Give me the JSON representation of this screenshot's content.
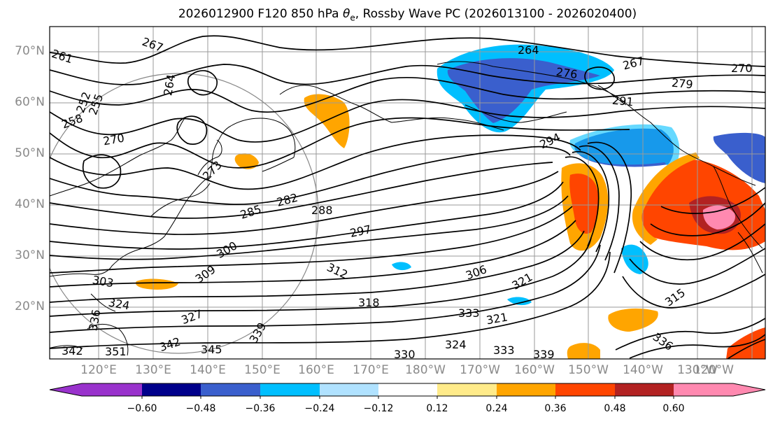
{
  "title": {
    "prefix": "2026012900 F120 850 hPa ",
    "theta": "θ",
    "theta_sub": "e",
    "suffix": ", Rossby Wave PC (2026013100 - 2026020400)"
  },
  "lat_labels": [
    "70°N",
    "60°N",
    "50°N",
    "40°N",
    "30°N",
    "20°N"
  ],
  "lon_labels": [
    "120°E",
    "130°E",
    "140°E",
    "150°E",
    "160°E",
    "170°E",
    "180°W",
    "170°W",
    "160°W",
    "150°W",
    "140°W",
    "130°W",
    "120°W"
  ],
  "contour_labels": [
    "261",
    "267",
    "264",
    "252",
    "255",
    "258",
    "270",
    "273",
    "264",
    "276",
    "267",
    "279",
    "270",
    "291",
    "294",
    "282",
    "285",
    "288",
    "297",
    "300",
    "309",
    "303",
    "312",
    "306",
    "321",
    "315",
    "318",
    "324",
    "327",
    "333",
    "321",
    "336",
    "330",
    "324",
    "333",
    "339",
    "342",
    "345",
    "339",
    "342",
    "351",
    "336"
  ],
  "colorbar": {
    "ticks": [
      "−0.60",
      "−0.48",
      "−0.36",
      "−0.24",
      "−0.12",
      "0.12",
      "0.24",
      "0.36",
      "0.48",
      "0.60"
    ],
    "colors": [
      "#9932cc",
      "#00008b",
      "#3a5fcd",
      "#00bfff",
      "#b0e2ff",
      "#ffffff",
      "#ffeb8a",
      "#ffa500",
      "#ff4500",
      "#b22222",
      "#ff89b0",
      "#ff89b0"
    ]
  }
}
